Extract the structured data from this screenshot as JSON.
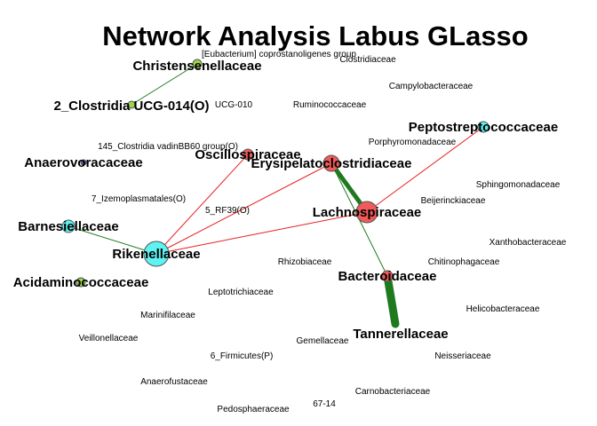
{
  "title": "Network Analysis Labus GLasso",
  "colors": {
    "positive_edge": "#1f7a1f",
    "negative_edge": "#e81f1f",
    "group_red": "#f05a5a",
    "group_cyan": "#5ef2f2",
    "group_green": "#9bd64a",
    "group_purple": "#6b5bb5",
    "node_stroke": "#555555"
  },
  "nodes": [
    {
      "id": "christensenellaceae",
      "label": "Christensenellaceae",
      "group": "green",
      "size": 5,
      "bold": true
    },
    {
      "id": "eubacterium",
      "label": "[Eubacterium] coprostanoligenes group",
      "group": "none",
      "size": 0,
      "bold": false
    },
    {
      "id": "clostridiaceae",
      "label": "Clostridiaceae",
      "group": "none",
      "size": 0,
      "bold": false
    },
    {
      "id": "campylobacteraceae",
      "label": "Campylobacteraceae",
      "group": "none",
      "size": 0,
      "bold": false
    },
    {
      "id": "clostridia-ucg014",
      "label": "2_Clostridia UCG-014(O)",
      "group": "green",
      "size": 4,
      "bold": true
    },
    {
      "id": "ucg010",
      "label": "UCG-010",
      "group": "none",
      "size": 0,
      "bold": false
    },
    {
      "id": "ruminococcaceae",
      "label": "Ruminococcaceae",
      "group": "none",
      "size": 0,
      "bold": false
    },
    {
      "id": "peptostreptococcaceae",
      "label": "Peptostreptococcaceae",
      "group": "cyan",
      "size": 6,
      "bold": true
    },
    {
      "id": "porphyromonadaceae",
      "label": "Porphyromonadaceae",
      "group": "none",
      "size": 0,
      "bold": false
    },
    {
      "id": "clostridia-vadin",
      "label": "145_Clostridia vadinBB60 group(O)",
      "group": "none",
      "size": 0,
      "bold": false
    },
    {
      "id": "oscillospiraceae",
      "label": "Oscillospiraceae",
      "group": "red",
      "size": 6,
      "bold": true
    },
    {
      "id": "erysipelatoclostridiaceae",
      "label": "Erysipelatoclostridiaceae",
      "group": "red",
      "size": 9,
      "bold": true
    },
    {
      "id": "anaerovoracaceae",
      "label": "Anaerovoracaceae",
      "group": "purple",
      "size": 3,
      "bold": true
    },
    {
      "id": "sphingomonadaceae",
      "label": "Sphingomonadaceae",
      "group": "none",
      "size": 0,
      "bold": false
    },
    {
      "id": "izemoplasmatales",
      "label": "7_Izemoplasmatales(O)",
      "group": "none",
      "size": 0,
      "bold": false
    },
    {
      "id": "beijerinckiaceae",
      "label": "Beijerinckiaceae",
      "group": "none",
      "size": 0,
      "bold": false
    },
    {
      "id": "rf39",
      "label": "5_RF39(O)",
      "group": "none",
      "size": 0,
      "bold": false
    },
    {
      "id": "lachnospiraceae",
      "label": "Lachnospiraceae",
      "group": "red",
      "size": 12,
      "bold": true
    },
    {
      "id": "barnesiellaceae",
      "label": "Barnesiellaceae",
      "group": "cyan",
      "size": 7,
      "bold": true
    },
    {
      "id": "xanthobacteraceae",
      "label": "Xanthobacteraceae",
      "group": "none",
      "size": 0,
      "bold": false
    },
    {
      "id": "rikenellaceae",
      "label": "Rikenellaceae",
      "group": "cyan",
      "size": 14,
      "bold": true
    },
    {
      "id": "rhizobiaceae",
      "label": "Rhizobiaceae",
      "group": "none",
      "size": 0,
      "bold": false
    },
    {
      "id": "chitinophagaceae",
      "label": "Chitinophagaceae",
      "group": "none",
      "size": 0,
      "bold": false
    },
    {
      "id": "acidaminococcaceae",
      "label": "Acidaminococcaceae",
      "group": "green",
      "size": 5,
      "bold": true
    },
    {
      "id": "bacteroidaceae",
      "label": "Bacteroidaceae",
      "group": "red",
      "size": 6,
      "bold": true
    },
    {
      "id": "leptotrichiaceae",
      "label": "Leptotrichiaceae",
      "group": "none",
      "size": 0,
      "bold": false
    },
    {
      "id": "helicobacteraceae",
      "label": "Helicobacteraceae",
      "group": "none",
      "size": 0,
      "bold": false
    },
    {
      "id": "marinifilaceae",
      "label": "Marinifilaceae",
      "group": "none",
      "size": 0,
      "bold": false
    },
    {
      "id": "tannerellaceae",
      "label": "Tannerellaceae",
      "group": "none",
      "size": 0,
      "bold": true
    },
    {
      "id": "veillonellaceae",
      "label": "Veillonellaceae",
      "group": "none",
      "size": 0,
      "bold": false
    },
    {
      "id": "gemellaceae",
      "label": "Gemellaceae",
      "group": "none",
      "size": 0,
      "bold": false
    },
    {
      "id": "neisseriaceae",
      "label": "Neisseriaceae",
      "group": "none",
      "size": 0,
      "bold": false
    },
    {
      "id": "firmicutes",
      "label": "6_Firmicutes(P)",
      "group": "none",
      "size": 0,
      "bold": false
    },
    {
      "id": "anaerofustaceae",
      "label": "Anaerofustaceae",
      "group": "none",
      "size": 0,
      "bold": false
    },
    {
      "id": "carnobacteriaceae",
      "label": "Carnobacteriaceae",
      "group": "none",
      "size": 0,
      "bold": false
    },
    {
      "id": "n67-14",
      "label": "67-14",
      "group": "none",
      "size": 0,
      "bold": false
    },
    {
      "id": "pedosphaeraceae",
      "label": "Pedosphaeraceae",
      "group": "none",
      "size": 0,
      "bold": false
    }
  ],
  "edges": [
    {
      "source": "christensenellaceae",
      "target": "clostridia-ucg014",
      "sign": "positive",
      "weight": 1
    },
    {
      "source": "barnesiellaceae",
      "target": "rikenellaceae",
      "sign": "positive",
      "weight": 1
    },
    {
      "source": "rikenellaceae",
      "target": "oscillospiraceae",
      "sign": "negative",
      "weight": 1
    },
    {
      "source": "rikenellaceae",
      "target": "erysipelatoclostridiaceae",
      "sign": "negative",
      "weight": 1
    },
    {
      "source": "rikenellaceae",
      "target": "lachnospiraceae",
      "sign": "negative",
      "weight": 1
    },
    {
      "source": "erysipelatoclostridiaceae",
      "target": "lachnospiraceae",
      "sign": "positive",
      "weight": 5
    },
    {
      "source": "erysipelatoclostridiaceae",
      "target": "bacteroidaceae",
      "sign": "positive",
      "weight": 1
    },
    {
      "source": "lachnospiraceae",
      "target": "peptostreptococcaceae",
      "sign": "negative",
      "weight": 1
    },
    {
      "source": "bacteroidaceae",
      "target": "tannerellaceae",
      "sign": "positive",
      "weight": 9
    }
  ]
}
